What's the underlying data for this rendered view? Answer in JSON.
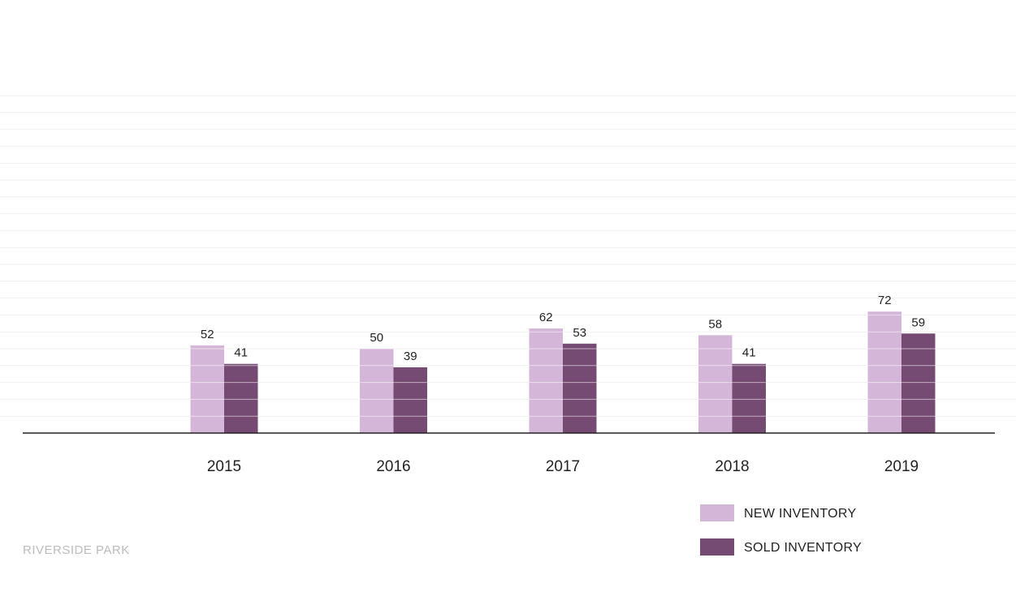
{
  "footer": {
    "label": "RIVERSIDE PARK"
  },
  "colors": {
    "new_inventory": "#d4b6d8",
    "sold_inventory": "#764b73"
  },
  "chart_data": {
    "type": "bar",
    "categories": [
      "2015",
      "2016",
      "2017",
      "2018",
      "2019"
    ],
    "series": [
      {
        "name": "NEW INVENTORY",
        "values": [
          52,
          50,
          62,
          58,
          72
        ]
      },
      {
        "name": "SOLD INVENTORY",
        "values": [
          41,
          39,
          53,
          41,
          59
        ]
      }
    ],
    "title": "",
    "xlabel": "",
    "ylabel": "",
    "ylim": [
      0,
      200
    ],
    "grid": true,
    "legend_position": "bottom-right"
  }
}
